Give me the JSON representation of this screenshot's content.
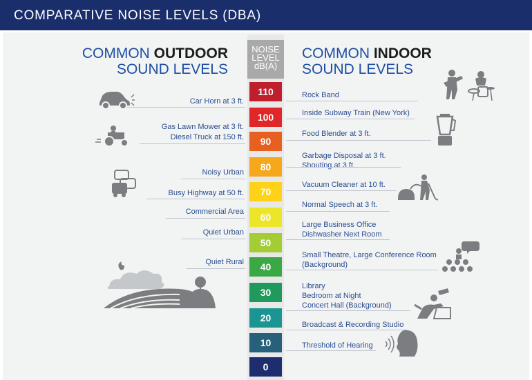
{
  "header": {
    "title": "COMPARATIVE NOISE LEVELS (DBA)"
  },
  "outdoor_title": {
    "line1_prefix": "COMMON ",
    "line1_bold": "OUTDOOR",
    "line2": "SOUND LEVELS"
  },
  "indoor_title": {
    "line1_prefix": "COMMON ",
    "line1_bold": "INDOOR",
    "line2": "SOUND LEVELS"
  },
  "scale_header": {
    "line1": "NOISE",
    "line2": "LEVEL",
    "line3": "dB(A)"
  },
  "levels": [
    {
      "value": "110",
      "color": "#bf1e2d"
    },
    {
      "value": "100",
      "color": "#e02626"
    },
    {
      "value": "90",
      "color": "#e8601f"
    },
    {
      "value": "80",
      "color": "#f5a81b"
    },
    {
      "value": "70",
      "color": "#ffd21a"
    },
    {
      "value": "60",
      "color": "#ece52a"
    },
    {
      "value": "50",
      "color": "#a3cc35"
    },
    {
      "value": "40",
      "color": "#3aa845"
    },
    {
      "value": "30",
      "color": "#1f9a5c"
    },
    {
      "value": "20",
      "color": "#1a9592"
    },
    {
      "value": "10",
      "color": "#27607a"
    },
    {
      "value": "0",
      "color": "#1d2d6e"
    }
  ],
  "outdoor": [
    {
      "label": "Car Horn at 3 ft."
    },
    {
      "label": "Gas Lawn Mower at 3 ft."
    },
    {
      "label": "Diesel Truck at 150 ft."
    },
    {
      "label": "Noisy Urban"
    },
    {
      "label": "Busy Highway at 50 ft."
    },
    {
      "label": "Commercial Area"
    },
    {
      "label": "Quiet Urban"
    },
    {
      "label": "Quiet Rural"
    }
  ],
  "indoor": [
    {
      "label": "Rock Band"
    },
    {
      "label": "Inside Subway Train (New York)"
    },
    {
      "label": "Food Blender at 3 ft."
    },
    {
      "label": "Garbage Disposal at 3 ft."
    },
    {
      "label": "Shouting at 3 ft."
    },
    {
      "label": "Vacuum Cleaner at 10 ft."
    },
    {
      "label": "Normal Speech at 3 ft."
    },
    {
      "label": "Large Business Office"
    },
    {
      "label": "Dishwasher Next Room"
    },
    {
      "label": "Small Theatre, Large Conference Room"
    },
    {
      "label": "(Background)"
    },
    {
      "label": "Library"
    },
    {
      "label": "Bedroom at Night"
    },
    {
      "label": "Concert Hall (Background)"
    },
    {
      "label": "Broadcast & Recording Studio"
    },
    {
      "label": "Threshold of Hearing"
    }
  ],
  "icons": {
    "outdoor": [
      "car-horn-icon",
      "lawn-tractor-icon",
      "traffic-icon",
      "rural-landscape-icon"
    ],
    "indoor": [
      "rock-band-icon",
      "blender-icon",
      "vacuum-icon",
      "theatre-audience-icon",
      "relaxing-person-icon",
      "ear-hearing-icon"
    ]
  }
}
